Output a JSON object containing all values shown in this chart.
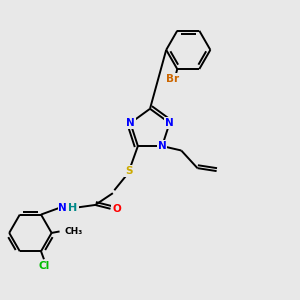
{
  "bg_color": "#e8e8e8",
  "bond_color": "#000000",
  "atom_colors": {
    "N": "#0000ff",
    "O": "#ff0000",
    "S": "#ccaa00",
    "Br": "#cc6600",
    "Cl": "#00bb00",
    "C": "#000000",
    "H": "#008888"
  },
  "font_size": 7.5,
  "bond_width": 1.4
}
